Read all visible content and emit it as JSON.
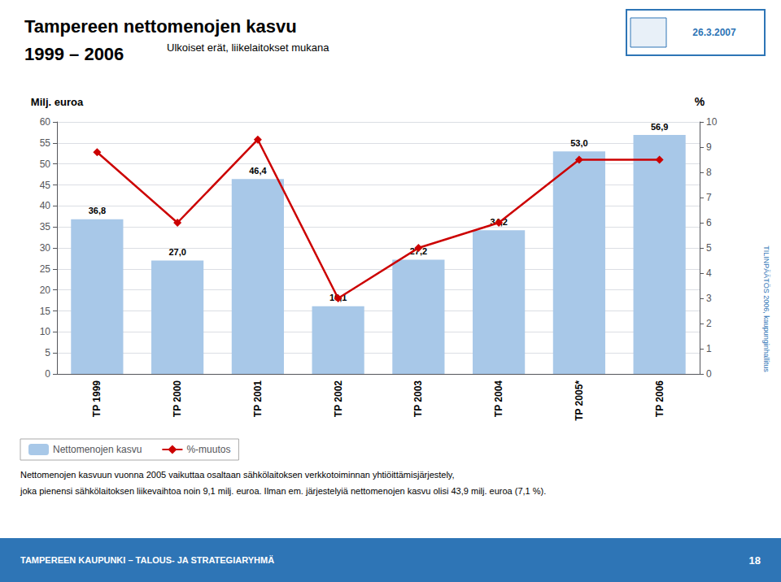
{
  "chart_data": {
    "type": "bar",
    "title": "Tampereen nettomenojen kasvu\n1999 – 2006",
    "subtitle": "Ulkoiset erät, liikelaitokset mukana",
    "ylabel": "Milj. euroa",
    "y2label": "%",
    "categories": [
      "TP 1999",
      "TP 2000",
      "TP 2001",
      "TP 2002",
      "TP 2003",
      "TP 2004",
      "TP 2005*",
      "TP 2006"
    ],
    "series": [
      {
        "name": "Nettomenojen kasvu",
        "type": "bar",
        "color": "#a8c8e8",
        "values": [
          36.8,
          27.0,
          46.4,
          16.1,
          27.2,
          34.2,
          53.0,
          56.9
        ],
        "value_labels": [
          "36,8",
          "27,0",
          "46,4",
          "16,1",
          "27,2",
          "34,2",
          "53,0",
          "56,9"
        ],
        "data_labels": true
      },
      {
        "name": "%-muutos",
        "type": "line",
        "axis": "y2",
        "color": "#cc0000",
        "marker": "diamond",
        "values": [
          8.8,
          6.0,
          9.3,
          3.0,
          5.0,
          6.0,
          8.5,
          8.5
        ]
      }
    ],
    "ylim": [
      0,
      60
    ],
    "yticks": [
      0,
      5,
      10,
      15,
      20,
      25,
      30,
      35,
      40,
      45,
      50,
      55,
      60
    ],
    "y2lim": [
      0,
      10
    ],
    "y2ticks": [
      0,
      1,
      2,
      3,
      4,
      5,
      6,
      7,
      8,
      9,
      10
    ],
    "grid": true,
    "legend": "lower left",
    "annotations": [
      "Nettomenojen kasvuun vuonna 2005 vaikuttaa osaltaan sähkölaitoksen verkkotoiminnan yhtiöittämisjärjestely,",
      "joka pienensi sähkölaitoksen liikevaihtoa noin 9,1 milj. euroa. Ilman em. järjestelyiä nettomenojen kasvu olisi 43,9 milj. euroa (7,1 %).",
      "TAMPEREEN KAUPUNKI – TALOUS- JA STRATEGIARYHMÄ",
      "18",
      "26.3.2007",
      "TILINPÄÄTÖS 2006, kaupunginhallitus"
    ]
  }
}
